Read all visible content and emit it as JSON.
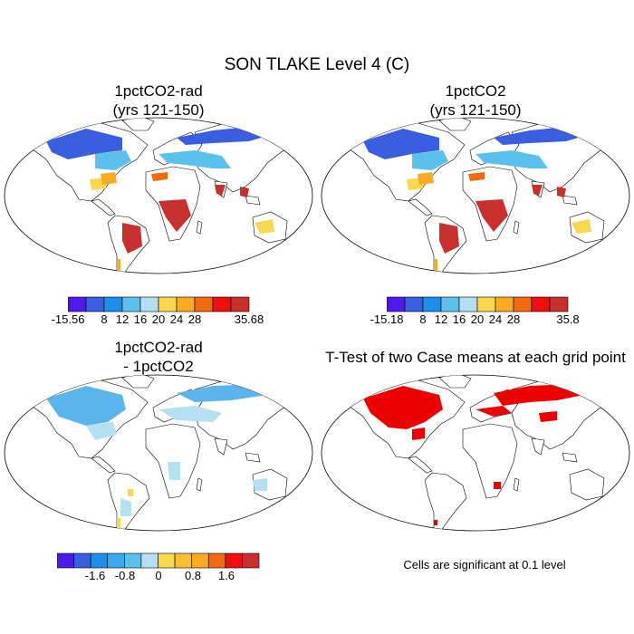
{
  "title": "SON TLAKE Level 4 (C)",
  "panels": [
    {
      "title_line1": "1pctCO2-rad",
      "title_line2": "(yrs 121-150)",
      "colorbar": {
        "colors": [
          "#4f1ae8",
          "#3a5ee0",
          "#1e8ee8",
          "#5cc0ec",
          "#b4e0f2",
          "#f8d84c",
          "#f8aa20",
          "#f06a10",
          "#ee1010",
          "#c83030"
        ],
        "labels": [
          "-15.56",
          "8",
          "12",
          "16",
          "20",
          "24",
          "28",
          "35.68"
        ]
      }
    },
    {
      "title_line1": "1pctCO2",
      "title_line2": "(yrs 121-150)",
      "colorbar": {
        "colors": [
          "#4f1ae8",
          "#3a5ee0",
          "#1e8ee8",
          "#5cc0ec",
          "#b4e0f2",
          "#f8d84c",
          "#f8aa20",
          "#f06a10",
          "#ee1010",
          "#c83030"
        ],
        "labels": [
          "-15.18",
          "8",
          "12",
          "16",
          "20",
          "24",
          "28",
          "35.8"
        ]
      }
    },
    {
      "title_line1": "1pctCO2-rad",
      "title_line2": "- 1pctCO2",
      "colorbar": {
        "colors": [
          "#4f1ae8",
          "#3a5ee0",
          "#1e8ee8",
          "#3aa8ec",
          "#5cc0ec",
          "#b4e0f2",
          "#f8d84c",
          "#f8c030",
          "#f8aa20",
          "#f06a10",
          "#ee1010",
          "#c83030"
        ],
        "labels": [
          "-1.6",
          "-0.8",
          "0",
          "0.8",
          "1.6"
        ]
      }
    },
    {
      "title_line1": "T-Test of two Case means at each grid point",
      "title_line2": ""
    }
  ],
  "footnote": "Cells are significant at 0.1 level",
  "map_colors": {
    "cold": "#3a5ee0",
    "cool": "#5cc0ec",
    "mild": "#b4e0f2",
    "warm": "#f8aa20",
    "hot": "#c83030",
    "diff_blue": "#5cb4ec",
    "diff_light": "#b4e0f2",
    "diff_yellow": "#f8d84c",
    "signif": "#ee0000"
  }
}
